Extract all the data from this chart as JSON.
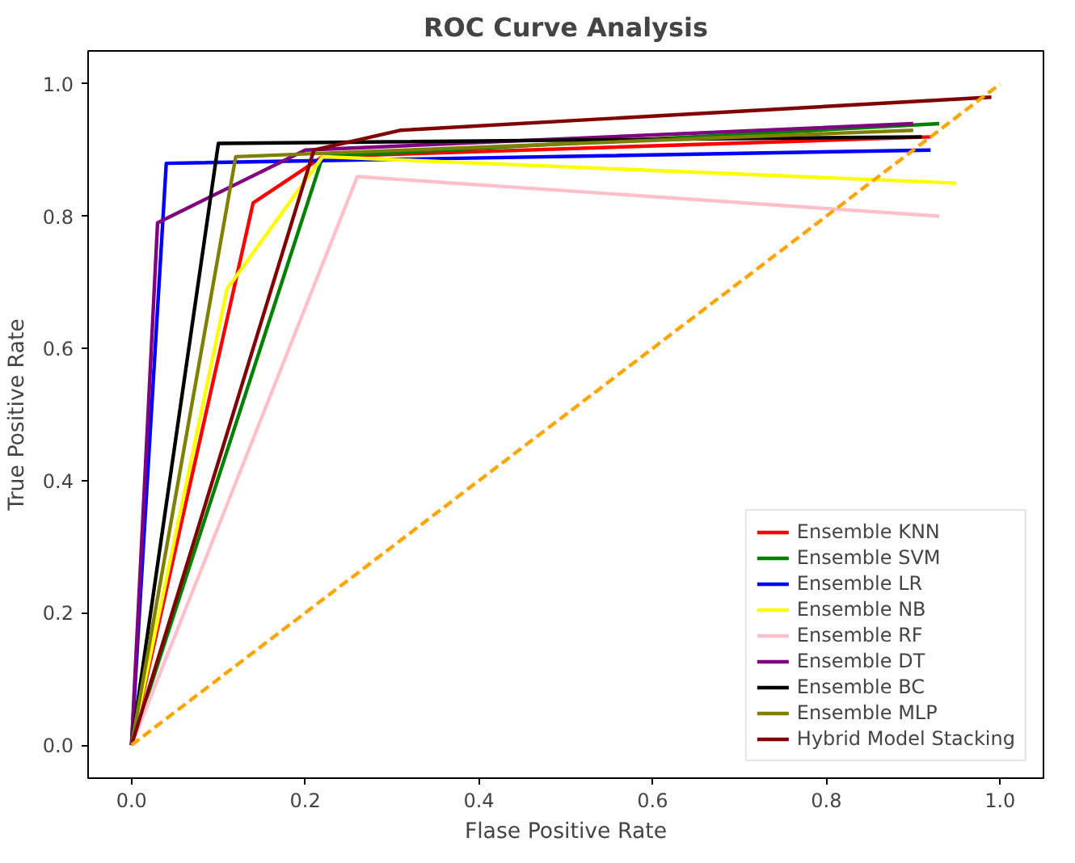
{
  "chart_data": {
    "type": "line",
    "title": "ROC Curve Analysis",
    "xlabel": "Flase Positive Rate",
    "ylabel": "True Positive Rate",
    "xlim": [
      -0.05,
      1.05
    ],
    "ylim": [
      -0.05,
      1.05
    ],
    "xticks": [
      {
        "value": 0,
        "label": "0.0"
      },
      {
        "value": 0.2,
        "label": "0.2"
      },
      {
        "value": 0.4,
        "label": "0.4"
      },
      {
        "value": 0.6,
        "label": "0.6"
      },
      {
        "value": 0.8,
        "label": "0.8"
      },
      {
        "value": 1,
        "label": "1.0"
      }
    ],
    "yticks": [
      {
        "value": 0,
        "label": "0.0"
      },
      {
        "value": 0.2,
        "label": "0.2"
      },
      {
        "value": 0.4,
        "label": "0.4"
      },
      {
        "value": 0.6,
        "label": "0.6"
      },
      {
        "value": 0.8,
        "label": "0.8"
      },
      {
        "value": 1,
        "label": "1.0"
      }
    ],
    "grid": false,
    "legend": "bottom right",
    "marker": "none",
    "line_style": "solid",
    "series": [
      {
        "name": "Ensemble KNN",
        "color": "#ff0000",
        "x": [
          0,
          0.14,
          0.22,
          0.92
        ],
        "values": [
          0,
          0.82,
          0.89,
          0.92
        ]
      },
      {
        "name": "Ensemble SVM",
        "color": "#008000",
        "x": [
          0,
          0.22,
          0.93
        ],
        "values": [
          0,
          0.89,
          0.94
        ]
      },
      {
        "name": "Ensemble LR",
        "color": "#0000ff",
        "x": [
          0,
          0.04,
          0.92
        ],
        "values": [
          0,
          0.88,
          0.9
        ]
      },
      {
        "name": "Ensemble NB",
        "color": "#ffff00",
        "x": [
          0,
          0.11,
          0.22,
          0.95
        ],
        "values": [
          0,
          0.69,
          0.89,
          0.85
        ]
      },
      {
        "name": "Ensemble RF",
        "color": "#ffc0cb",
        "x": [
          0,
          0.26,
          0.93
        ],
        "values": [
          0,
          0.86,
          0.8
        ]
      },
      {
        "name": "Ensemble DT",
        "color": "#800080",
        "x": [
          0,
          0.03,
          0.2,
          0.9
        ],
        "values": [
          0,
          0.79,
          0.9,
          0.94
        ]
      },
      {
        "name": "Ensemble BC",
        "color": "#000000",
        "x": [
          0,
          0.1,
          0.91
        ],
        "values": [
          0,
          0.91,
          0.92
        ]
      },
      {
        "name": "Ensemble MLP",
        "color": "#808000",
        "x": [
          0,
          0.12,
          0.9
        ],
        "values": [
          0,
          0.89,
          0.93
        ]
      },
      {
        "name": "Hybrid Model Stacking",
        "color": "#800000",
        "x": [
          0,
          0.21,
          0.31,
          0.99
        ],
        "values": [
          0,
          0.9,
          0.93,
          0.98
        ]
      },
      {
        "color": "#ffa500",
        "line_style": "dashed",
        "x": [
          0,
          1
        ],
        "values": [
          0,
          1
        ]
      }
    ]
  }
}
